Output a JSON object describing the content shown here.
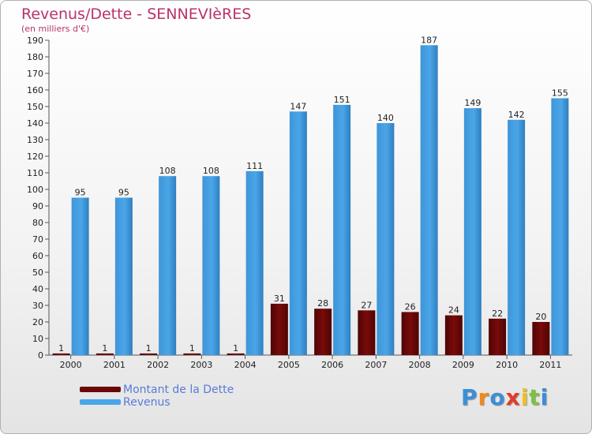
{
  "chart_data": {
    "type": "bar",
    "title": "Revenus/Dette - SENNEVIèRES",
    "subtitle": "(en milliers d'€)",
    "categories": [
      "2000",
      "2001",
      "2002",
      "2003",
      "2004",
      "2005",
      "2006",
      "2007",
      "2008",
      "2009",
      "2010",
      "2011"
    ],
    "series": [
      {
        "name": "Montant de la Dette",
        "color": "#7a0a0a",
        "values": [
          1,
          1,
          1,
          1,
          1,
          31,
          28,
          27,
          26,
          24,
          22,
          20
        ]
      },
      {
        "name": "Revenus",
        "color": "#4aa6e8",
        "values": [
          95,
          95,
          108,
          108,
          111,
          147,
          151,
          140,
          187,
          149,
          142,
          155
        ]
      }
    ],
    "ylim": [
      0,
      190
    ],
    "yticks": [
      0,
      10,
      20,
      30,
      40,
      50,
      60,
      70,
      80,
      90,
      100,
      110,
      120,
      130,
      140,
      150,
      160,
      170,
      180,
      190
    ],
    "grid": false,
    "legend_position": "bottom-left"
  },
  "logo": {
    "text": "Proxiti",
    "letters": [
      "P",
      "r",
      "o",
      "x",
      "i",
      "t",
      "i"
    ],
    "colors": [
      "#3a8fd8",
      "#f08a1c",
      "#3a8fd8",
      "#e23a2a",
      "#f0c020",
      "#7cc242",
      "#3a8fd8"
    ]
  }
}
